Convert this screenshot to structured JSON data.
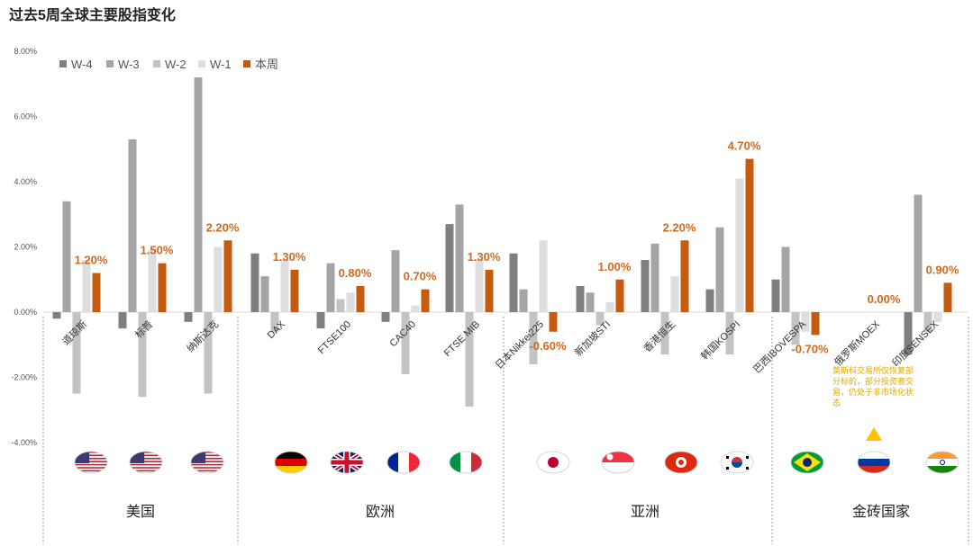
{
  "chart_data": {
    "type": "bar",
    "title": "过去5周全球主要股指变化",
    "ylim": [
      -0.06,
      0.08
    ],
    "yticks": [
      "8.00%",
      "6.00%",
      "4.00%",
      "2.00%",
      "0.00%",
      "-2.00%",
      "-4.00%"
    ],
    "ytick_values": [
      0.08,
      0.06,
      0.04,
      0.02,
      0.0,
      -0.02,
      -0.04
    ],
    "legend_position": "top-left",
    "series": [
      {
        "name": "W-4",
        "color": "#7f7f7f",
        "values": [
          -0.002,
          -0.005,
          -0.003,
          0.018,
          -0.005,
          -0.003,
          0.027,
          0.018,
          0.008,
          0.016,
          0.007,
          0.01,
          0.0,
          -0.013
        ]
      },
      {
        "name": "W-3",
        "color": "#a5a5a5",
        "values": [
          0.034,
          0.053,
          0.072,
          0.011,
          0.015,
          0.019,
          0.033,
          0.007,
          0.006,
          0.021,
          0.026,
          0.02,
          0.0,
          0.036
        ]
      },
      {
        "name": "W-2",
        "color": "#c3c3c3",
        "values": [
          -0.025,
          -0.026,
          -0.025,
          -0.006,
          0.004,
          -0.019,
          -0.029,
          -0.016,
          -0.004,
          -0.013,
          -0.013,
          -0.01,
          0.0,
          -0.006
        ]
      },
      {
        "name": "W-1",
        "color": "#dedede",
        "values": [
          0.016,
          0.019,
          0.02,
          0.016,
          0.006,
          0.002,
          0.016,
          0.022,
          0.003,
          0.011,
          0.041,
          -0.006,
          0.0,
          -0.003
        ]
      },
      {
        "name": "本周",
        "color": "#c55a11",
        "values": [
          0.012,
          0.015,
          0.022,
          0.013,
          0.008,
          0.007,
          0.013,
          -0.006,
          0.01,
          0.022,
          0.047,
          -0.007,
          0.0,
          0.009
        ]
      }
    ],
    "categories": [
      "道琼斯",
      "标普",
      "纳斯达克",
      "DAX",
      "FTSE100",
      "CAC40",
      "FTSE MIB",
      "日本Nikkei225",
      "新加坡STI",
      "香港恒生",
      "韩国KOSPI",
      "巴西IBOVESPA",
      "俄罗斯MOEX",
      "印度SENSEX"
    ],
    "data_labels": [
      "1.20%",
      "1.50%",
      "2.20%",
      "1.30%",
      "0.80%",
      "0.70%",
      "1.30%",
      "-0.60%",
      "1.00%",
      "2.20%",
      "4.70%",
      "-0.70%",
      "0.00%",
      "0.90%"
    ],
    "groups": [
      {
        "label": "美国",
        "flags": [
          "us-flag-icon",
          "us-flag-icon",
          "us-flag-icon"
        ]
      },
      {
        "label": "欧洲",
        "flags": [
          "germany-flag-icon",
          "uk-flag-icon",
          "france-flag-icon",
          "italy-flag-icon"
        ]
      },
      {
        "label": "亚洲",
        "flags": [
          "japan-flag-icon",
          "singapore-flag-icon",
          "hongkong-flag-icon",
          "korea-flag-icon"
        ]
      },
      {
        "label": "金砖国家",
        "flags": [
          "brazil-flag-icon",
          "russia-flag-icon",
          "india-flag-icon"
        ]
      }
    ],
    "annotation": "莫斯科交易所仅恢复部分标的，部分投资者交易，仍处于非市场化状态"
  }
}
